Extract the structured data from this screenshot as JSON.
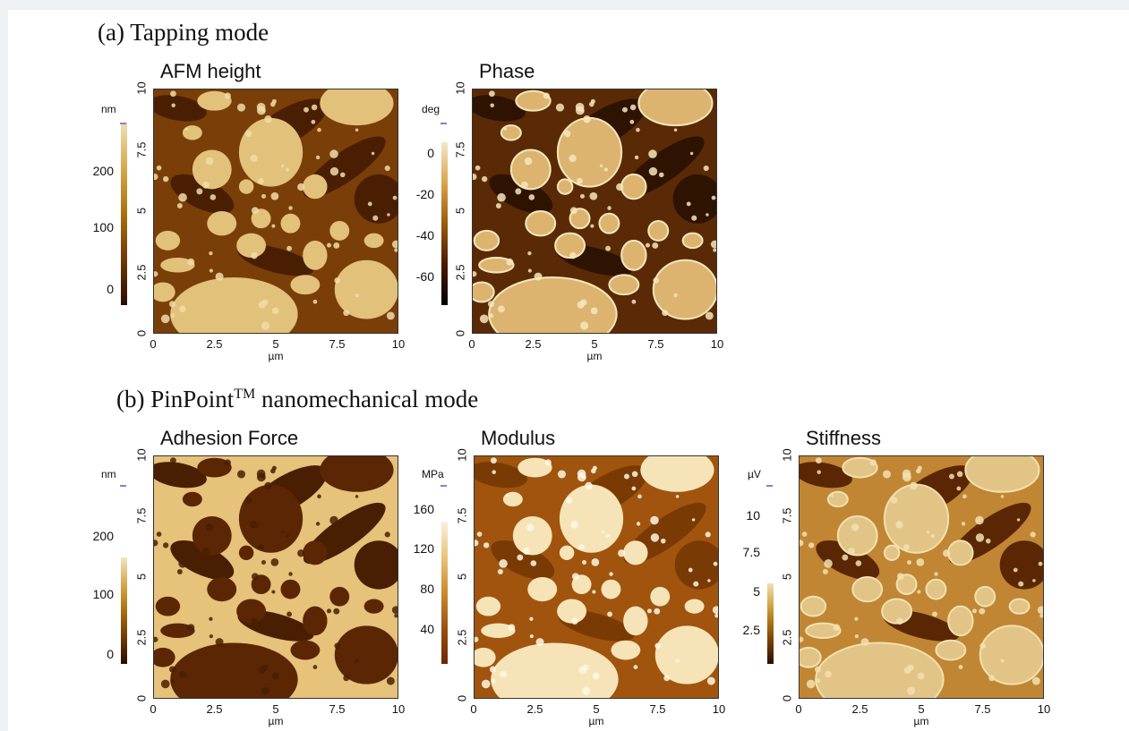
{
  "figure": {
    "section_a": {
      "title": "(a) Tapping mode"
    },
    "section_b": {
      "title_pre": "(b) PinPoint",
      "title_sup": "TM",
      "title_post": " nanomechanical mode"
    },
    "xaxis": {
      "ticks": [
        "0",
        "2.5",
        "5",
        "7.5",
        "10"
      ],
      "unit": "µm"
    },
    "yaxis": {
      "ticks": [
        "0",
        "2.5",
        "5",
        "7.5",
        "10"
      ]
    },
    "panels": [
      {
        "id": "afm-height",
        "title": "AFM height",
        "unit": "nm",
        "colorbar_ticks": [
          "200",
          "100",
          "0"
        ],
        "style": "height"
      },
      {
        "id": "phase",
        "title": "Phase",
        "unit": "deg",
        "colorbar_ticks": [
          "0",
          "-20",
          "-40",
          "-60"
        ],
        "style": "phase"
      },
      {
        "id": "adhesion",
        "title": "Adhesion Force",
        "unit": "nm",
        "colorbar_ticks": [
          "200",
          "100",
          "0"
        ],
        "style": "adhesion"
      },
      {
        "id": "modulus",
        "title": "Modulus",
        "unit": "MPa",
        "colorbar_ticks": [
          "160",
          "120",
          "80",
          "40"
        ],
        "style": "modulus"
      },
      {
        "id": "stiffness",
        "title": "Stiffness",
        "unit": "µV",
        "colorbar_ticks": [
          "10",
          "7.5",
          "5",
          "2.5"
        ],
        "style": "stiffness"
      }
    ]
  }
}
